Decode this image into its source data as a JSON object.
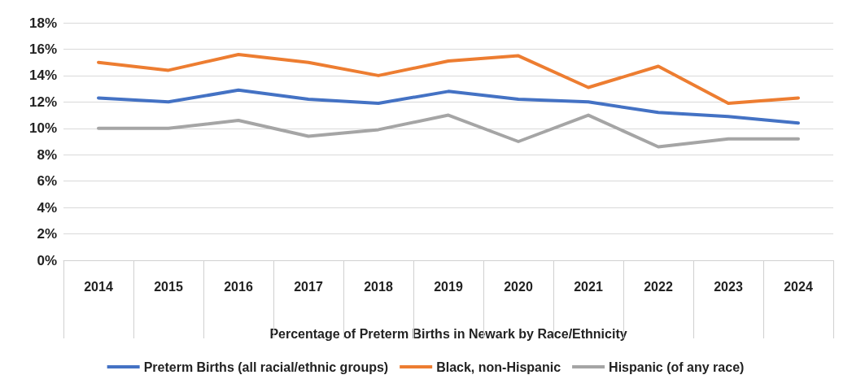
{
  "chart_data": {
    "type": "line",
    "xlabel": "Percentage of Preterm Births in Newark by Race/Ethnicity",
    "categories": [
      "2014",
      "2015",
      "2016",
      "2017",
      "2018",
      "2019",
      "2020",
      "2021",
      "2022",
      "2023",
      "2024"
    ],
    "series": [
      {
        "name": "Preterm Births (all racial/ethnic groups)",
        "color": "#4472c4",
        "values": [
          12.3,
          12.0,
          12.9,
          12.2,
          11.9,
          12.8,
          12.2,
          12.0,
          11.2,
          10.9,
          10.4
        ]
      },
      {
        "name": "Black, non-Hispanic",
        "color": "#ed7d31",
        "values": [
          15.0,
          14.4,
          15.6,
          15.0,
          14.0,
          15.1,
          15.5,
          13.1,
          14.7,
          11.9,
          12.3
        ]
      },
      {
        "name": "Hispanic (of any race)",
        "color": "#a5a5a5",
        "values": [
          10.0,
          10.0,
          10.6,
          9.4,
          9.9,
          11.0,
          9.0,
          11.0,
          8.6,
          9.2,
          9.2
        ]
      }
    ],
    "ylim": [
      0,
      18
    ],
    "yticks": [
      {
        "value": 0,
        "label": "0%"
      },
      {
        "value": 2,
        "label": "2%"
      },
      {
        "value": 4,
        "label": "4%"
      },
      {
        "value": 6,
        "label": "6%"
      },
      {
        "value": 8,
        "label": "8%"
      },
      {
        "value": 10,
        "label": "10%"
      },
      {
        "value": 12,
        "label": "12%"
      },
      {
        "value": 14,
        "label": "14%"
      },
      {
        "value": 16,
        "label": "16%"
      },
      {
        "value": 18,
        "label": "18%"
      }
    ],
    "grid": "y",
    "legend": "bottom",
    "marker": "none",
    "line_style": "solid"
  }
}
